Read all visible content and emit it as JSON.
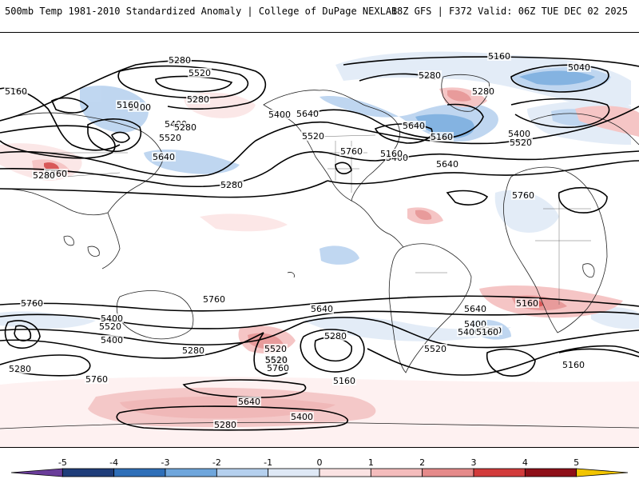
{
  "header": {
    "title_left": "500mb Temp 1981-2010 Standardized Anomaly | College of DuPage NEXLAB",
    "title_right": "18Z GFS | F372 Valid: 06Z TUE DEC 02 2025"
  },
  "colorbar": {
    "ticks": [
      {
        "label": "-5",
        "value": -5
      },
      {
        "label": "-4",
        "value": -4
      },
      {
        "label": "-3",
        "value": -3
      },
      {
        "label": "-2",
        "value": -2
      },
      {
        "label": "-1",
        "value": -1
      },
      {
        "label": "0",
        "value": 0
      },
      {
        "label": "1",
        "value": 1
      },
      {
        "label": "2",
        "value": 2
      },
      {
        "label": "3",
        "value": 3
      },
      {
        "label": "4",
        "value": 4
      },
      {
        "label": "5",
        "value": 5
      }
    ],
    "bins": [
      {
        "from": -6,
        "to": -5,
        "color": "#6a3d9a"
      },
      {
        "from": -5,
        "to": -4,
        "color": "#1f3d7a"
      },
      {
        "from": -4,
        "to": -3,
        "color": "#2f6fb8"
      },
      {
        "from": -3,
        "to": -2,
        "color": "#6fa6dc"
      },
      {
        "from": -2,
        "to": -1,
        "color": "#b5d0ee"
      },
      {
        "from": -1,
        "to": 0,
        "color": "#dfe9f6"
      },
      {
        "from": 0,
        "to": 1,
        "color": "#fbe3e3"
      },
      {
        "from": 1,
        "to": 2,
        "color": "#f4bcbc"
      },
      {
        "from": 2,
        "to": 3,
        "color": "#e58a8a"
      },
      {
        "from": 3,
        "to": 4,
        "color": "#d23b3b"
      },
      {
        "from": 4,
        "to": 5,
        "color": "#8e0f18"
      },
      {
        "from": 5,
        "to": 6,
        "color": "#f2c500"
      }
    ]
  },
  "map": {
    "contour_labels": [
      "5280",
      "5520",
      "5280",
      "5400",
      "5160",
      "5400",
      "5520",
      "5640",
      "5760",
      "5280",
      "5400",
      "5640",
      "5520",
      "5760",
      "5400",
      "5640",
      "5160",
      "5280",
      "5160",
      "5040",
      "5640",
      "5760",
      "5400",
      "5520",
      "5160",
      "5280",
      "5760",
      "5640",
      "5400",
      "5280",
      "5520",
      "5760",
      "5280",
      "5400",
      "5520",
      "5640",
      "5760",
      "5640",
      "5400",
      "5520",
      "5400",
      "5280",
      "5160",
      "5280",
      "5520",
      "5160",
      "5760",
      "5640",
      "5400",
      "5280",
      "5160",
      "5160",
      "5280",
      "5280",
      "5160"
    ],
    "colors": {
      "contour": "#000000",
      "coastline": "#222222",
      "cold": "#b5d0ee",
      "warm": "#f4bcbc"
    }
  }
}
